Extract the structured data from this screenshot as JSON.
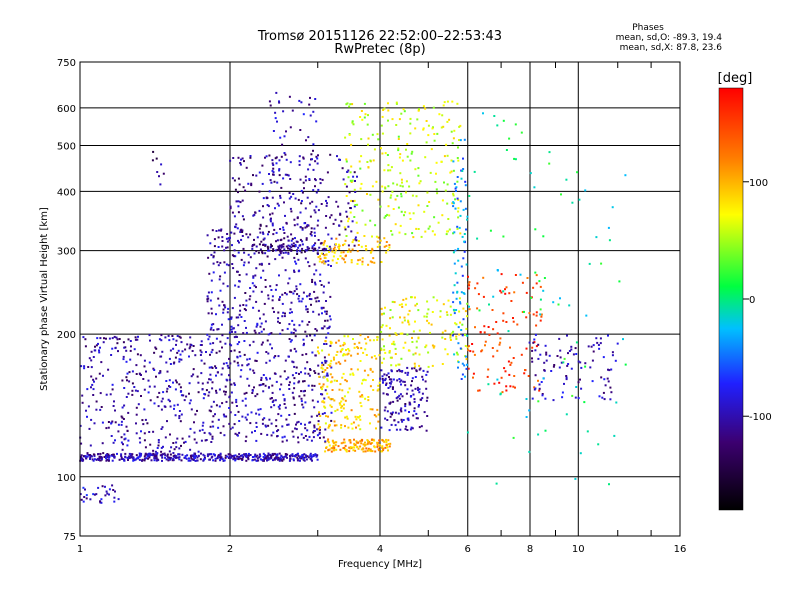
{
  "chart_data": {
    "type": "scatter",
    "title": "Tromsø 20151126 22:52:00–22:53:43",
    "subtitle": "RwPretec (8p)",
    "xlabel": "Frequency [MHz]",
    "ylabel": "Stationary phase Virtual Height [km]",
    "x_scale": "log",
    "y_scale": "log",
    "xlim": [
      1,
      16
    ],
    "ylim": [
      75,
      750
    ],
    "x_ticks": [
      1,
      2,
      4,
      6,
      8,
      10,
      16
    ],
    "x_tick_labels": [
      "1",
      "2",
      "4",
      "6",
      "8",
      "10",
      "16"
    ],
    "x_minor_ticks": [
      3,
      5,
      7,
      9,
      12,
      14
    ],
    "y_ticks": [
      75,
      100,
      200,
      300,
      400,
      500,
      600,
      750
    ],
    "y_tick_labels": [
      "75",
      "100",
      "200",
      "300",
      "400",
      "500",
      "600",
      "750"
    ],
    "grid": true,
    "phase_info": {
      "heading": "Phases",
      "o_line": "mean, sd,O: -89.3, 19.4",
      "x_line": "mean, sd,X: 87.8, 23.6"
    },
    "colorbar": {
      "label": "[deg]",
      "range": [
        -180,
        180
      ],
      "tick_values": [
        100,
        0,
        -100
      ],
      "tick_labels": [
        "100",
        "0",
        "-100"
      ],
      "colormap": [
        "#000000",
        "#3c0070",
        "#2020ff",
        "#00c0ff",
        "#00ff40",
        "#ffff00",
        "#ff8000",
        "#ff0000"
      ]
    },
    "point_groups": [
      {
        "x": [
          1.0,
          3.0
        ],
        "y": [
          108,
          112
        ],
        "phase": -100,
        "count": 480
      },
      {
        "x": [
          3.1,
          4.2
        ],
        "y": [
          113,
          120
        ],
        "phase": 105,
        "count": 140
      },
      {
        "x": [
          1.0,
          1.2
        ],
        "y": [
          88,
          96
        ],
        "phase": -95,
        "count": 30
      },
      {
        "x": [
          1.0,
          1.8
        ],
        "y": [
          112,
          200
        ],
        "phase": -105,
        "count": 350
      },
      {
        "x": [
          1.8,
          3.2
        ],
        "y": [
          118,
          340
        ],
        "phase": -105,
        "count": 750
      },
      {
        "x": [
          2.0,
          3.6
        ],
        "y": [
          300,
          480
        ],
        "phase": -110,
        "count": 220
      },
      {
        "x": [
          2.4,
          3.0
        ],
        "y": [
          300,
          650
        ],
        "phase": -100,
        "count": 90
      },
      {
        "x": [
          2.2,
          3.2
        ],
        "y": [
          295,
          310
        ],
        "phase": -115,
        "count": 60
      },
      {
        "x": [
          3.0,
          4.2
        ],
        "y": [
          280,
          320
        ],
        "phase": 95,
        "count": 90
      },
      {
        "x": [
          3.0,
          4.0
        ],
        "y": [
          125,
          200
        ],
        "phase": 90,
        "count": 200
      },
      {
        "x": [
          4.0,
          5.0
        ],
        "y": [
          125,
          170
        ],
        "phase": -105,
        "count": 150
      },
      {
        "x": [
          3.4,
          5.8
        ],
        "y": [
          320,
          620
        ],
        "phase": 60,
        "count": 260
      },
      {
        "x": [
          4.0,
          6.0
        ],
        "y": [
          170,
          240
        ],
        "phase": 70,
        "count": 150
      },
      {
        "x": [
          5.6,
          6.0
        ],
        "y": [
          160,
          520
        ],
        "phase": -40,
        "count": 80
      },
      {
        "x": [
          6.0,
          8.5
        ],
        "y": [
          150,
          270
        ],
        "phase": 150,
        "count": 110
      },
      {
        "x": [
          7.8,
          12.0
        ],
        "y": [
          145,
          200
        ],
        "phase": -100,
        "count": 100
      },
      {
        "x": [
          6.0,
          12.5
        ],
        "y": [
          95,
          600
        ],
        "phase": 0,
        "count": 90
      },
      {
        "x": [
          1.4,
          1.5
        ],
        "y": [
          400,
          500
        ],
        "phase": -120,
        "count": 8
      }
    ]
  }
}
